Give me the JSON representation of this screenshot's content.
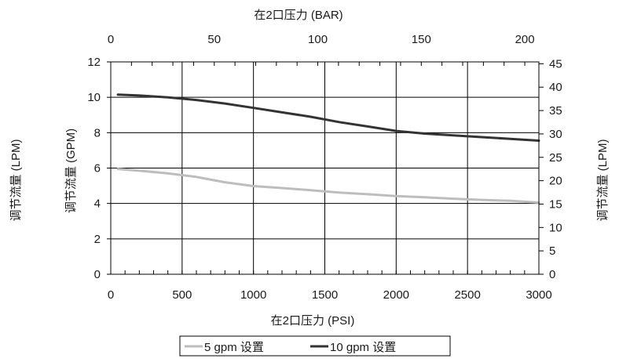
{
  "chart_data": {
    "type": "line",
    "x_axis_bottom": {
      "label": "在2口压力 (PSI)",
      "range": [
        0,
        3000
      ],
      "ticks": [
        0,
        500,
        1000,
        1500,
        2000,
        2500,
        3000
      ]
    },
    "x_axis_top": {
      "label": "在2口压力 (BAR)",
      "range": [
        0,
        206.8
      ],
      "ticks": [
        0,
        50,
        100,
        150,
        200
      ]
    },
    "y_axis_left": {
      "label": "调节流量 (GPM)",
      "range": [
        0,
        12
      ],
      "ticks": [
        0,
        2,
        4,
        6,
        8,
        10,
        12
      ]
    },
    "y_axis_right": {
      "label": "调节流量 (LPM)",
      "range": [
        0,
        45.4
      ],
      "ticks": [
        0,
        5,
        10,
        15,
        20,
        25,
        30,
        35,
        40,
        45
      ]
    },
    "outer_left_label": "调节流量 (LPM)",
    "grid": true,
    "legend_position": "bottom",
    "series": [
      {
        "name": "5 gpm 设置",
        "color": "#bdbdbd",
        "x": [
          50,
          200,
          400,
          600,
          800,
          1000,
          1200,
          1400,
          1600,
          1800,
          2000,
          2200,
          2400,
          2600,
          2800,
          3000
        ],
        "y": [
          5.95,
          5.85,
          5.7,
          5.5,
          5.2,
          4.98,
          4.87,
          4.75,
          4.62,
          4.52,
          4.42,
          4.35,
          4.27,
          4.2,
          4.15,
          4.05
        ]
      },
      {
        "name": "10 gpm 设置",
        "color": "#333333",
        "x": [
          50,
          200,
          400,
          600,
          800,
          1000,
          1200,
          1400,
          1600,
          1800,
          2000,
          2200,
          2400,
          2600,
          2800,
          3000
        ],
        "y": [
          10.15,
          10.1,
          10.0,
          9.85,
          9.65,
          9.4,
          9.15,
          8.9,
          8.6,
          8.35,
          8.1,
          7.95,
          7.85,
          7.75,
          7.65,
          7.55
        ]
      }
    ]
  }
}
